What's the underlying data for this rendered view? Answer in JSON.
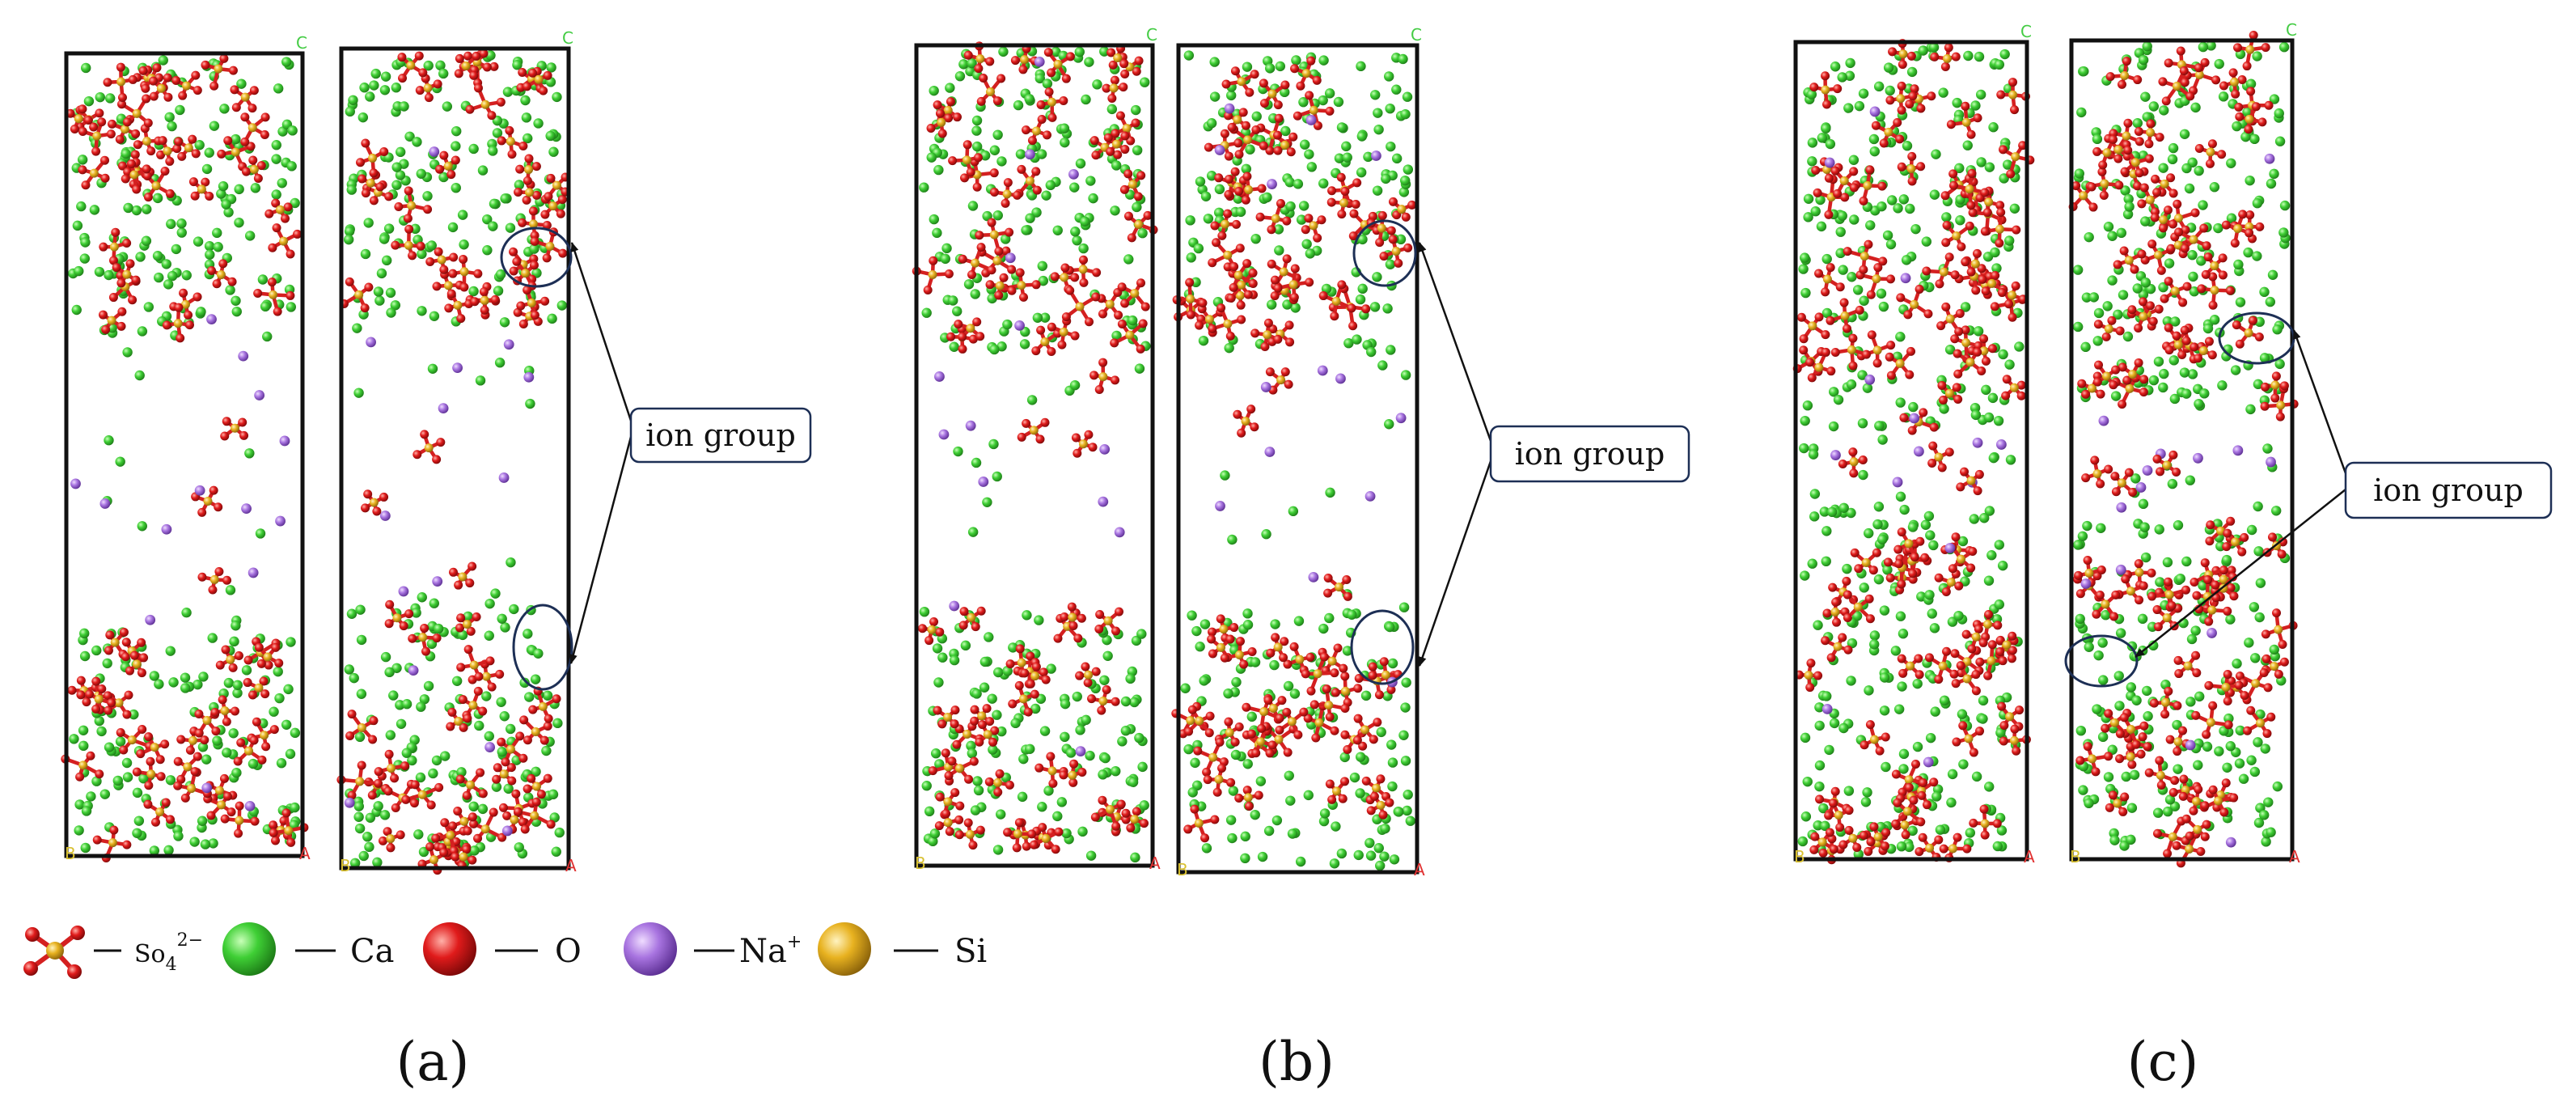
{
  "callouts": [
    {
      "text": "ion group"
    },
    {
      "text": "ion group"
    },
    {
      "text": "ion group"
    }
  ],
  "panel_labels": [
    "(a)",
    "(b)",
    "(c)"
  ],
  "legend": [
    {
      "icon": "sulfate-ion-icon",
      "label": "So",
      "sub": "4",
      "sup": "2−"
    },
    {
      "icon": "calcium-sphere-icon",
      "label": "Ca"
    },
    {
      "icon": "oxygen-sphere-icon",
      "label": "O"
    },
    {
      "icon": "sodium-sphere-icon",
      "label": "Na",
      "sup": "+"
    },
    {
      "icon": "silicon-sphere-icon",
      "label": "Si"
    }
  ],
  "colors": {
    "calcium": "#3fcf35",
    "oxygen": "#e01b1b",
    "sodium": "#a874e0",
    "silicon": "#e8b220",
    "box": "#111111",
    "callout_border": "#1d2f55",
    "corner_c": "#44cc44",
    "corner_a": "#e03030",
    "corner_b": "#d8c030"
  }
}
